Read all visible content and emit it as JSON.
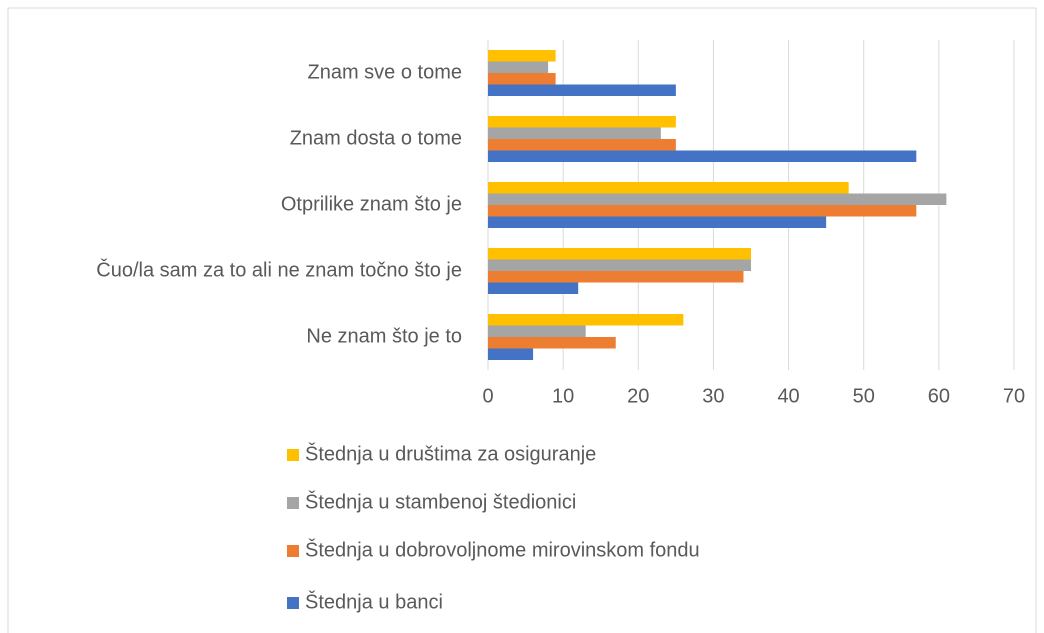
{
  "chart_data": {
    "type": "bar",
    "orientation": "horizontal",
    "categories": [
      "Znam sve o tome",
      "Znam dosta o tome",
      "Otprilike znam što je",
      "Čuo/la sam za to ali ne znam točno što je",
      "Ne znam što je to"
    ],
    "series": [
      {
        "name": "Štednja u društima za osiguranje",
        "color": "#ffc000",
        "values": [
          9,
          25,
          48,
          35,
          26
        ]
      },
      {
        "name": "Štednja u stambenoj štedionici",
        "color": "#a5a5a5",
        "values": [
          8,
          23,
          61,
          35,
          13
        ]
      },
      {
        "name": "Štednja u dobrovoljnome mirovinskom fondu",
        "color": "#ed7d31",
        "values": [
          9,
          25,
          57,
          34,
          17
        ]
      },
      {
        "name": "Štednja u banci",
        "color": "#4472c4",
        "values": [
          25,
          57,
          45,
          12,
          6
        ]
      }
    ],
    "xlim": [
      0,
      70
    ],
    "xticks": [
      0,
      10,
      20,
      30,
      40,
      50,
      60,
      70
    ],
    "grid": true,
    "legend": "bottom"
  }
}
